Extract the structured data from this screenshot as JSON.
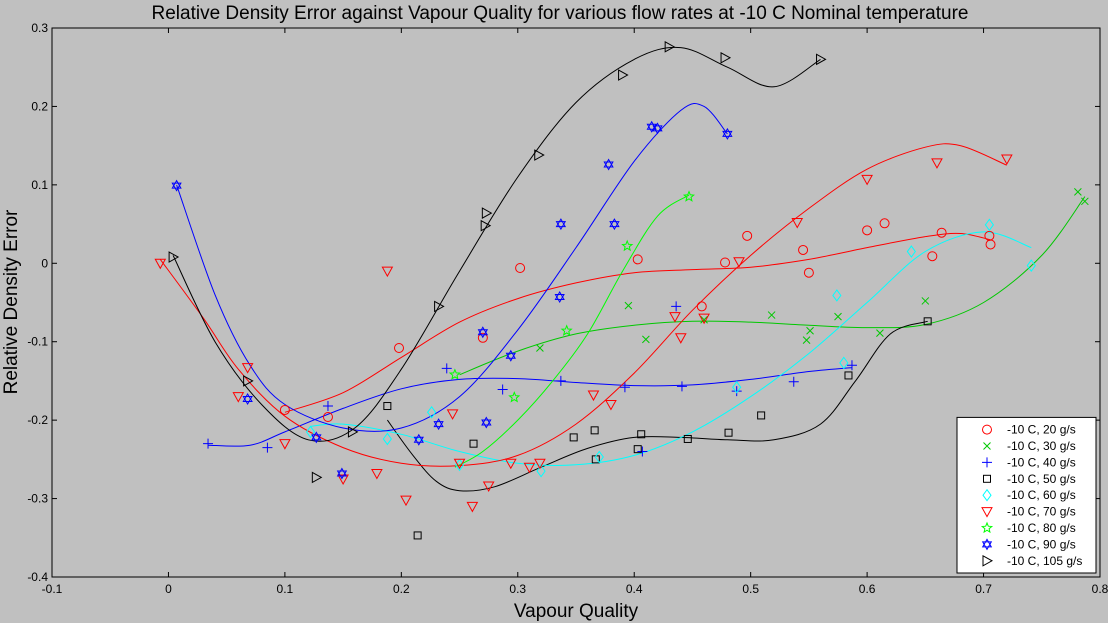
{
  "chart_data": {
    "type": "scatter",
    "title": "Relative Density Error against Vapour Quality for various flow rates at -10 C Nominal temperature",
    "xlabel": "Vapour Quality",
    "ylabel": "Relative Density Error",
    "xlim": [
      -0.1,
      0.8
    ],
    "ylim": [
      -0.4,
      0.3
    ],
    "xticks": [
      -0.1,
      0,
      0.1,
      0.2,
      0.3,
      0.4,
      0.5,
      0.6,
      0.7,
      0.8
    ],
    "xtick_labels": [
      "-0.1",
      "0",
      "0.1",
      "0.2",
      "0.3",
      "0.4",
      "0.5",
      "0.6",
      "0.7",
      "0.8"
    ],
    "yticks": [
      -0.4,
      -0.3,
      -0.2,
      -0.1,
      0,
      0.1,
      0.2,
      0.3
    ],
    "ytick_labels": [
      "-0.4",
      "-0.3",
      "-0.2",
      "-0.1",
      "0",
      "0.1",
      "0.2",
      "0.3"
    ],
    "grid": false,
    "legend_position": "bottom-right",
    "background_color": "#c0c0c0",
    "series": [
      {
        "name": "-10 C, 20 g/s",
        "marker": "circle",
        "color": "#ff0000",
        "points": [
          [
            0.1,
            -0.187
          ],
          [
            0.137,
            -0.196
          ],
          [
            0.198,
            -0.108
          ],
          [
            0.27,
            -0.095
          ],
          [
            0.302,
            -0.006
          ],
          [
            0.403,
            0.005
          ],
          [
            0.458,
            -0.055
          ],
          [
            0.478,
            0.001
          ],
          [
            0.497,
            0.035
          ],
          [
            0.545,
            0.017
          ],
          [
            0.55,
            -0.012
          ],
          [
            0.6,
            0.042
          ],
          [
            0.615,
            0.051
          ],
          [
            0.656,
            0.009
          ],
          [
            0.664,
            0.039
          ],
          [
            0.705,
            0.035
          ],
          [
            0.706,
            0.024
          ]
        ],
        "fit": [
          [
            0.1,
            -0.19
          ],
          [
            0.15,
            -0.165
          ],
          [
            0.2,
            -0.12
          ],
          [
            0.25,
            -0.075
          ],
          [
            0.3,
            -0.045
          ],
          [
            0.35,
            -0.025
          ],
          [
            0.4,
            -0.012
          ],
          [
            0.45,
            -0.008
          ],
          [
            0.5,
            -0.005
          ],
          [
            0.55,
            0.005
          ],
          [
            0.6,
            0.02
          ],
          [
            0.65,
            0.034
          ],
          [
            0.68,
            0.038
          ],
          [
            0.706,
            0.03
          ]
        ]
      },
      {
        "name": "-10 C, 30 g/s",
        "marker": "x",
        "color": "#00c800",
        "points": [
          [
            0.319,
            -0.108
          ],
          [
            0.395,
            -0.054
          ],
          [
            0.41,
            -0.097
          ],
          [
            0.46,
            -0.072
          ],
          [
            0.518,
            -0.066
          ],
          [
            0.548,
            -0.098
          ],
          [
            0.551,
            -0.086
          ],
          [
            0.575,
            -0.068
          ],
          [
            0.611,
            -0.089
          ],
          [
            0.65,
            -0.048
          ],
          [
            0.781,
            0.091
          ],
          [
            0.787,
            0.079
          ]
        ],
        "fit": [
          [
            0.25,
            -0.142
          ],
          [
            0.3,
            -0.112
          ],
          [
            0.35,
            -0.09
          ],
          [
            0.4,
            -0.079
          ],
          [
            0.45,
            -0.074
          ],
          [
            0.5,
            -0.075
          ],
          [
            0.55,
            -0.079
          ],
          [
            0.6,
            -0.082
          ],
          [
            0.65,
            -0.078
          ],
          [
            0.7,
            -0.05
          ],
          [
            0.75,
            0.01
          ],
          [
            0.787,
            0.085
          ]
        ]
      },
      {
        "name": "-10 C, 40 g/s",
        "marker": "plus",
        "color": "#0000ff",
        "points": [
          [
            0.034,
            -0.23
          ],
          [
            0.085,
            -0.235
          ],
          [
            0.137,
            -0.182
          ],
          [
            0.239,
            -0.134
          ],
          [
            0.287,
            -0.161
          ],
          [
            0.337,
            -0.15
          ],
          [
            0.392,
            -0.158
          ],
          [
            0.407,
            -0.24
          ],
          [
            0.436,
            -0.055
          ],
          [
            0.441,
            -0.157
          ],
          [
            0.488,
            -0.163
          ],
          [
            0.537,
            -0.151
          ],
          [
            0.587,
            -0.13
          ]
        ],
        "fit": [
          [
            0.034,
            -0.232
          ],
          [
            0.07,
            -0.232
          ],
          [
            0.1,
            -0.215
          ],
          [
            0.15,
            -0.185
          ],
          [
            0.2,
            -0.16
          ],
          [
            0.25,
            -0.148
          ],
          [
            0.3,
            -0.147
          ],
          [
            0.35,
            -0.152
          ],
          [
            0.4,
            -0.156
          ],
          [
            0.45,
            -0.155
          ],
          [
            0.5,
            -0.148
          ],
          [
            0.55,
            -0.138
          ],
          [
            0.587,
            -0.133
          ]
        ]
      },
      {
        "name": "-10 C, 50 g/s",
        "marker": "square",
        "color": "#000000",
        "points": [
          [
            0.188,
            -0.182
          ],
          [
            0.214,
            -0.347
          ],
          [
            0.262,
            -0.23
          ],
          [
            0.348,
            -0.222
          ],
          [
            0.366,
            -0.213
          ],
          [
            0.367,
            -0.25
          ],
          [
            0.403,
            -0.237
          ],
          [
            0.406,
            -0.218
          ],
          [
            0.446,
            -0.224
          ],
          [
            0.481,
            -0.216
          ],
          [
            0.509,
            -0.194
          ],
          [
            0.584,
            -0.143
          ],
          [
            0.652,
            -0.074
          ]
        ],
        "fit": [
          [
            0.188,
            -0.2
          ],
          [
            0.21,
            -0.245
          ],
          [
            0.23,
            -0.278
          ],
          [
            0.25,
            -0.29
          ],
          [
            0.28,
            -0.285
          ],
          [
            0.32,
            -0.26
          ],
          [
            0.36,
            -0.236
          ],
          [
            0.4,
            -0.222
          ],
          [
            0.44,
            -0.222
          ],
          [
            0.48,
            -0.225
          ],
          [
            0.52,
            -0.225
          ],
          [
            0.56,
            -0.205
          ],
          [
            0.59,
            -0.15
          ],
          [
            0.62,
            -0.09
          ],
          [
            0.652,
            -0.074
          ]
        ]
      },
      {
        "name": "-10 C, 60 g/s",
        "marker": "diamond",
        "color": "#00ffff",
        "points": [
          [
            0.122,
            -0.215
          ],
          [
            0.188,
            -0.224
          ],
          [
            0.226,
            -0.19
          ],
          [
            0.25,
            -0.257
          ],
          [
            0.32,
            -0.265
          ],
          [
            0.37,
            -0.247
          ],
          [
            0.488,
            -0.158
          ],
          [
            0.58,
            -0.127
          ],
          [
            0.574,
            -0.041
          ],
          [
            0.638,
            0.015
          ],
          [
            0.705,
            0.049
          ],
          [
            0.741,
            -0.003
          ]
        ],
        "fit": [
          [
            0.122,
            -0.208
          ],
          [
            0.15,
            -0.205
          ],
          [
            0.2,
            -0.218
          ],
          [
            0.25,
            -0.24
          ],
          [
            0.3,
            -0.255
          ],
          [
            0.35,
            -0.257
          ],
          [
            0.4,
            -0.245
          ],
          [
            0.45,
            -0.215
          ],
          [
            0.5,
            -0.17
          ],
          [
            0.55,
            -0.115
          ],
          [
            0.6,
            -0.05
          ],
          [
            0.65,
            0.015
          ],
          [
            0.7,
            0.04
          ],
          [
            0.741,
            0.02
          ]
        ]
      },
      {
        "name": "-10 C, 70 g/s",
        "marker": "triangle-down",
        "color": "#ff0000",
        "points": [
          [
            -0.007,
            0.0
          ],
          [
            0.068,
            -0.133
          ],
          [
            0.06,
            -0.17
          ],
          [
            0.1,
            -0.23
          ],
          [
            0.15,
            -0.275
          ],
          [
            0.179,
            -0.268
          ],
          [
            0.188,
            -0.01
          ],
          [
            0.204,
            -0.302
          ],
          [
            0.244,
            -0.192
          ],
          [
            0.25,
            -0.255
          ],
          [
            0.261,
            -0.31
          ],
          [
            0.275,
            -0.284
          ],
          [
            0.294,
            -0.255
          ],
          [
            0.31,
            -0.26
          ],
          [
            0.319,
            -0.255
          ],
          [
            0.365,
            -0.168
          ],
          [
            0.38,
            -0.18
          ],
          [
            0.435,
            -0.068
          ],
          [
            0.44,
            -0.095
          ],
          [
            0.46,
            -0.07
          ],
          [
            0.49,
            0.002
          ],
          [
            0.54,
            0.052
          ],
          [
            0.6,
            0.107
          ],
          [
            0.66,
            0.128
          ],
          [
            0.72,
            0.133
          ]
        ],
        "fit": [
          [
            -0.007,
            0.005
          ],
          [
            0.03,
            -0.07
          ],
          [
            0.06,
            -0.135
          ],
          [
            0.1,
            -0.195
          ],
          [
            0.15,
            -0.235
          ],
          [
            0.2,
            -0.255
          ],
          [
            0.25,
            -0.258
          ],
          [
            0.3,
            -0.245
          ],
          [
            0.35,
            -0.205
          ],
          [
            0.4,
            -0.14
          ],
          [
            0.45,
            -0.06
          ],
          [
            0.5,
            0.01
          ],
          [
            0.55,
            0.07
          ],
          [
            0.6,
            0.12
          ],
          [
            0.65,
            0.148
          ],
          [
            0.68,
            0.15
          ],
          [
            0.72,
            0.125
          ]
        ]
      },
      {
        "name": "-10 C, 80 g/s",
        "marker": "star",
        "color": "#00ff00",
        "points": [
          [
            0.246,
            -0.142
          ],
          [
            0.297,
            -0.171
          ],
          [
            0.342,
            -0.086
          ],
          [
            0.394,
            0.022
          ],
          [
            0.447,
            0.085
          ]
        ],
        "fit": [
          [
            0.246,
            -0.26
          ],
          [
            0.27,
            -0.24
          ],
          [
            0.3,
            -0.2
          ],
          [
            0.33,
            -0.15
          ],
          [
            0.36,
            -0.09
          ],
          [
            0.39,
            -0.01
          ],
          [
            0.42,
            0.06
          ],
          [
            0.447,
            0.087
          ]
        ]
      },
      {
        "name": "-10 C, 90 g/s",
        "marker": "hexagram",
        "color": "#0000ff",
        "points": [
          [
            0.007,
            0.099
          ],
          [
            0.068,
            -0.173
          ],
          [
            0.127,
            -0.222
          ],
          [
            0.149,
            -0.268
          ],
          [
            0.215,
            -0.225
          ],
          [
            0.232,
            -0.205
          ],
          [
            0.27,
            -0.088
          ],
          [
            0.273,
            -0.203
          ],
          [
            0.294,
            -0.118
          ],
          [
            0.336,
            -0.043
          ],
          [
            0.337,
            0.05
          ],
          [
            0.378,
            0.126
          ],
          [
            0.383,
            0.05
          ],
          [
            0.415,
            0.174
          ],
          [
            0.42,
            0.172
          ],
          [
            0.48,
            0.165
          ]
        ],
        "fit": [
          [
            0.007,
            0.1
          ],
          [
            0.04,
            -0.04
          ],
          [
            0.07,
            -0.13
          ],
          [
            0.1,
            -0.18
          ],
          [
            0.15,
            -0.21
          ],
          [
            0.2,
            -0.21
          ],
          [
            0.25,
            -0.17
          ],
          [
            0.3,
            -0.085
          ],
          [
            0.35,
            0.02
          ],
          [
            0.4,
            0.13
          ],
          [
            0.44,
            0.195
          ],
          [
            0.46,
            0.2
          ],
          [
            0.48,
            0.165
          ]
        ]
      },
      {
        "name": "-10 C, 105 g/s",
        "marker": "triangle-right",
        "color": "#000000",
        "points": [
          [
            0.004,
            0.008
          ],
          [
            0.068,
            -0.15
          ],
          [
            0.127,
            -0.273
          ],
          [
            0.158,
            -0.215
          ],
          [
            0.232,
            -0.055
          ],
          [
            0.272,
            0.048
          ],
          [
            0.273,
            0.064
          ],
          [
            0.318,
            0.138
          ],
          [
            0.39,
            0.24
          ],
          [
            0.43,
            0.276
          ],
          [
            0.478,
            0.262
          ],
          [
            0.56,
            0.26
          ]
        ],
        "fit": [
          [
            0.004,
            0.01
          ],
          [
            0.04,
            -0.1
          ],
          [
            0.08,
            -0.18
          ],
          [
            0.12,
            -0.225
          ],
          [
            0.16,
            -0.21
          ],
          [
            0.2,
            -0.135
          ],
          [
            0.25,
            -0.01
          ],
          [
            0.3,
            0.11
          ],
          [
            0.35,
            0.205
          ],
          [
            0.4,
            0.26
          ],
          [
            0.44,
            0.275
          ],
          [
            0.48,
            0.25
          ],
          [
            0.52,
            0.225
          ],
          [
            0.56,
            0.26
          ]
        ]
      }
    ]
  }
}
